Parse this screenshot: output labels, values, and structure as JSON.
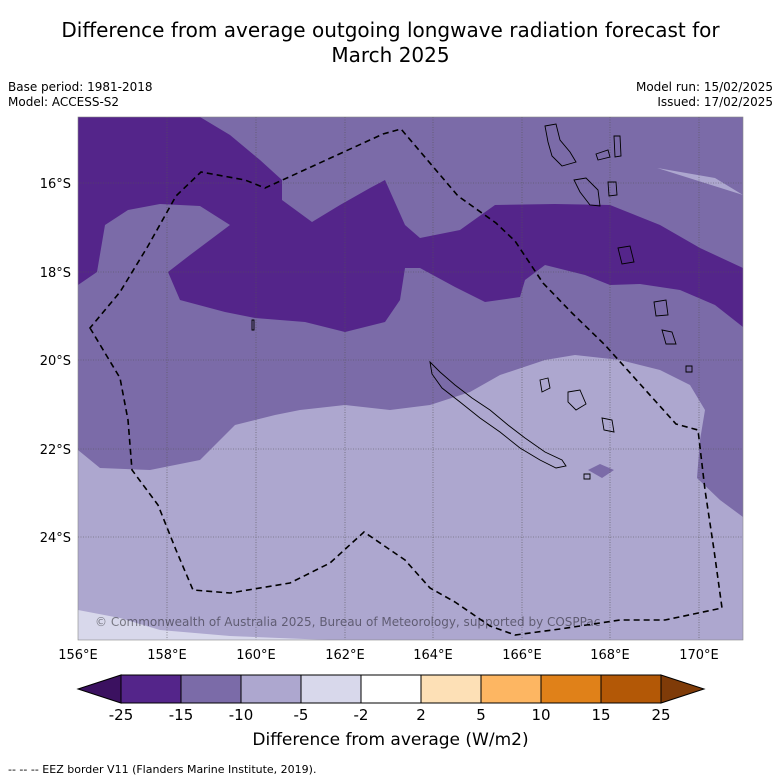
{
  "title_line1": "Difference from average outgoing longwave radiation forecast for",
  "title_line2": "March 2025",
  "base_period": "Base period: 1981-2018",
  "model": "Model: ACCESS-S2",
  "model_run": "Model run: 15/02/2025",
  "issued": "Issued: 17/02/2025",
  "copyright": "© Commonwealth of Australia 2025, Bureau of Meteorology, supported by COSPPac",
  "x_ticks": [
    "156°E",
    "158°E",
    "160°E",
    "162°E",
    "164°E",
    "166°E",
    "168°E",
    "170°E"
  ],
  "y_ticks": [
    "16°S",
    "18°S",
    "20°S",
    "22°S",
    "24°S"
  ],
  "colorbar": {
    "title": "Difference from average (W/m2)",
    "ticks": [
      "-25",
      "-15",
      "-10",
      "-5",
      "-2",
      "2",
      "5",
      "10",
      "15",
      "25"
    ],
    "colors": {
      "lt_m25": "#3b1160",
      "m25_m15": "#54258a",
      "m15_m10": "#7b6ba8",
      "m10_m5": "#ada7cf",
      "m5_m2": "#d8d8eb",
      "m2_2": "#ffffff",
      "p2_5": "#fde0b6",
      "p5_10": "#fdb662",
      "p10_15": "#e08119",
      "p15_25": "#b35806",
      "gt_p25": "#7f3b08"
    }
  },
  "footer": "--  --  -- EEZ border V11 (Flanders Marine Institute, 2019)."
}
